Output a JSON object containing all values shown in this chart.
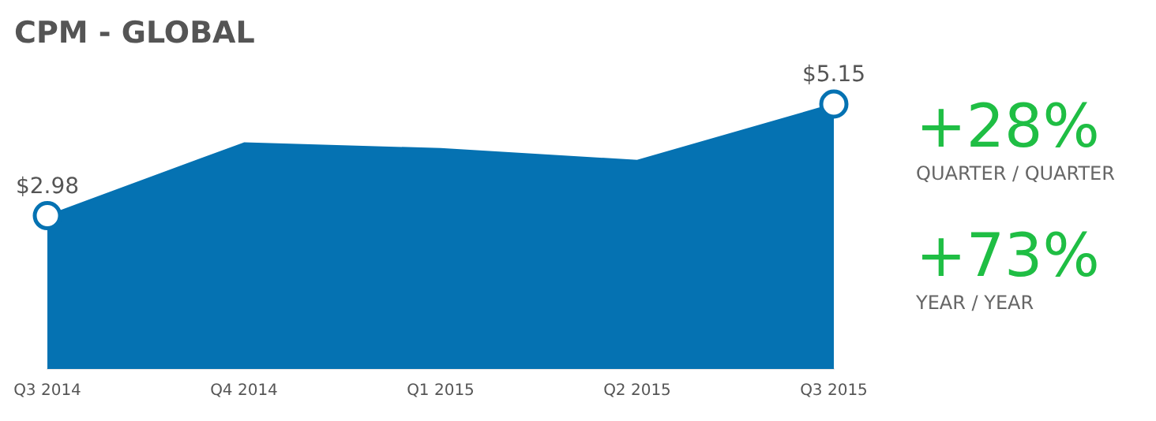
{
  "chart_data": {
    "type": "area",
    "title": "CPM - GLOBAL",
    "categories": [
      "Q3 2014",
      "Q4 2014",
      "Q1 2015",
      "Q2 2015",
      "Q3 2015"
    ],
    "values": [
      2.98,
      4.39,
      4.28,
      4.05,
      5.15
    ],
    "value_labels": [
      "$2.98",
      null,
      null,
      null,
      "$5.15"
    ],
    "color": "#0572b2",
    "grid": false,
    "legend": false,
    "tick_labels": "x",
    "annotations": [
      "+28%",
      "QUARTER / QUARTER",
      "+73%",
      "YEAR / YEAR"
    ]
  }
}
